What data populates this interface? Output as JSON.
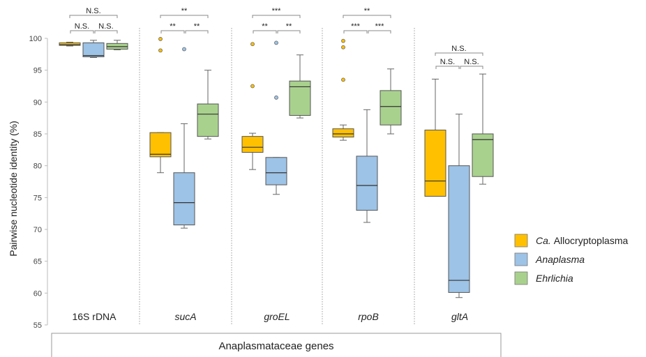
{
  "chart_data": {
    "type": "box",
    "ylabel": "Pairwise nucleotide identity (%)",
    "xlabel": "Anaplasmataceae genes",
    "ylim": [
      55,
      100
    ],
    "yticks": [
      55,
      60,
      65,
      70,
      75,
      80,
      85,
      90,
      95,
      100
    ],
    "grid": false,
    "legend_position": "right",
    "colors": {
      "Ca. Allocryptoplasma": "#FFC000",
      "Anaplasma": "#9DC3E6",
      "Ehrlichia": "#A9D18E"
    },
    "series": [
      {
        "name_prefix": "Ca.",
        "name_rest": "Allocryptoplasma",
        "key": "Ca. Allocryptoplasma",
        "italic_prefix_only": true
      },
      {
        "name_prefix": "",
        "name_rest": "Anaplasma",
        "key": "Anaplasma",
        "italic_prefix_only": false
      },
      {
        "name_prefix": "",
        "name_rest": "Ehrlichia",
        "key": "Ehrlichia",
        "italic_prefix_only": false
      }
    ],
    "genes": [
      {
        "label": "16S rDNA",
        "italic": false,
        "boxes": [
          {
            "series": "Ca. Allocryptoplasma",
            "min": 98.8,
            "q1": 98.9,
            "median": 99.0,
            "q3": 99.3,
            "max": 99.4,
            "outliers": []
          },
          {
            "series": "Anaplasma",
            "min": 97.0,
            "q1": 97.1,
            "median": 97.3,
            "q3": 99.3,
            "max": 99.7,
            "outliers": []
          },
          {
            "series": "Ehrlichia",
            "min": 98.2,
            "q1": 98.3,
            "median": 98.7,
            "q3": 99.2,
            "max": 99.7,
            "outliers": []
          }
        ],
        "significance": {
          "pair_12": "N.S.",
          "pair_23": "N.S.",
          "pair_13": "N.S."
        }
      },
      {
        "label": "sucA",
        "italic": true,
        "boxes": [
          {
            "series": "Ca. Allocryptoplasma",
            "min": 78.9,
            "q1": 81.4,
            "median": 81.8,
            "q3": 85.2,
            "max": 85.2,
            "outliers": [
              99.9,
              98.1
            ]
          },
          {
            "series": "Anaplasma",
            "min": 70.2,
            "q1": 70.7,
            "median": 74.2,
            "q3": 78.9,
            "max": 86.6,
            "outliers": [
              98.3
            ]
          },
          {
            "series": "Ehrlichia",
            "min": 84.2,
            "q1": 84.6,
            "median": 88.1,
            "q3": 89.7,
            "max": 95.0,
            "outliers": []
          }
        ],
        "significance": {
          "pair_12": "**",
          "pair_23": "**",
          "pair_13": "**"
        }
      },
      {
        "label": "groEL",
        "italic": true,
        "boxes": [
          {
            "series": "Ca. Allocryptoplasma",
            "min": 79.4,
            "q1": 82.1,
            "median": 82.9,
            "q3": 84.6,
            "max": 85.1,
            "outliers": [
              99.1,
              92.5
            ]
          },
          {
            "series": "Anaplasma",
            "min": 75.5,
            "q1": 77.0,
            "median": 78.9,
            "q3": 81.3,
            "max": 81.3,
            "outliers": [
              99.3,
              90.7
            ]
          },
          {
            "series": "Ehrlichia",
            "min": 87.5,
            "q1": 87.9,
            "median": 92.4,
            "q3": 93.3,
            "max": 97.4,
            "outliers": []
          }
        ],
        "significance": {
          "pair_12": "**",
          "pair_23": "**",
          "pair_13": "***"
        }
      },
      {
        "label": "rpoB",
        "italic": true,
        "boxes": [
          {
            "series": "Ca. Allocryptoplasma",
            "min": 84.0,
            "q1": 84.5,
            "median": 85.0,
            "q3": 85.8,
            "max": 86.4,
            "outliers": [
              99.6,
              98.6,
              93.5
            ]
          },
          {
            "series": "Anaplasma",
            "min": 71.1,
            "q1": 73.0,
            "median": 76.9,
            "q3": 81.5,
            "max": 88.8,
            "outliers": []
          },
          {
            "series": "Ehrlichia",
            "min": 85.0,
            "q1": 86.4,
            "median": 89.3,
            "q3": 91.8,
            "max": 95.2,
            "outliers": []
          }
        ],
        "significance": {
          "pair_12": "***",
          "pair_23": "***",
          "pair_13": "**"
        }
      },
      {
        "label": "gltA",
        "italic": true,
        "boxes": [
          {
            "series": "Ca. Allocryptoplasma",
            "min": 75.2,
            "q1": 75.2,
            "median": 77.6,
            "q3": 85.6,
            "max": 93.6,
            "outliers": []
          },
          {
            "series": "Anaplasma",
            "min": 59.3,
            "q1": 60.1,
            "median": 62.0,
            "q3": 80.0,
            "max": 88.1,
            "outliers": []
          },
          {
            "series": "Ehrlichia",
            "min": 77.1,
            "q1": 78.3,
            "median": 84.1,
            "q3": 85.0,
            "max": 94.4,
            "outliers": []
          }
        ],
        "significance": {
          "pair_12": "N.S.",
          "pair_23": "N.S.",
          "pair_13": "N.S."
        }
      }
    ]
  }
}
